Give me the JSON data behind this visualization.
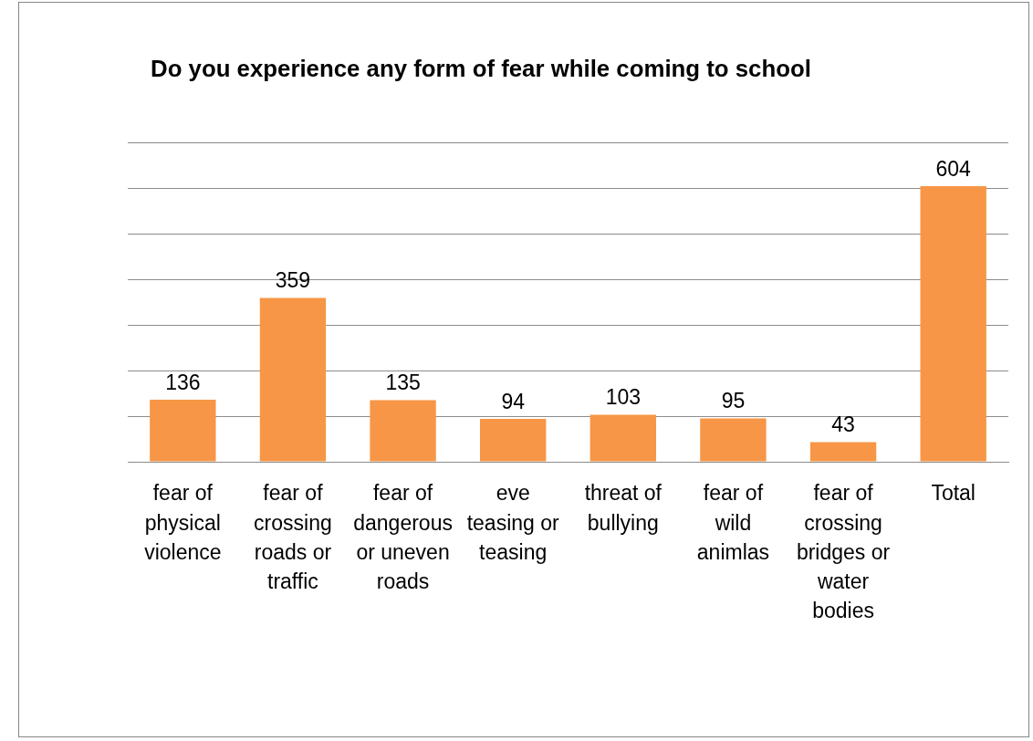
{
  "chart_data": {
    "type": "bar",
    "title": "Do you experience any form of fear while coming to school",
    "categories": [
      "fear of physical violence",
      "fear of crossing roads or traffic",
      "fear of dangerous or uneven roads",
      "eve teasing or teasing",
      "threat of bullying",
      "fear of wild animlas",
      "fear of crossing bridges or water bodies",
      "Total"
    ],
    "values": [
      136,
      359,
      135,
      94,
      103,
      95,
      43,
      604
    ],
    "color": "#f79646",
    "ylim": [
      0,
      700
    ],
    "yticks": [
      {
        "value": 0,
        "label": null
      },
      {
        "value": 100,
        "label": null
      },
      {
        "value": 200,
        "label": null
      },
      {
        "value": 300,
        "label": null
      },
      {
        "value": 400,
        "label": null
      },
      {
        "value": 500,
        "label": null
      },
      {
        "value": 600,
        "label": null
      },
      {
        "value": 700,
        "label": null
      }
    ],
    "grid": "y",
    "tick_labels": "x",
    "data_labels": true
  }
}
